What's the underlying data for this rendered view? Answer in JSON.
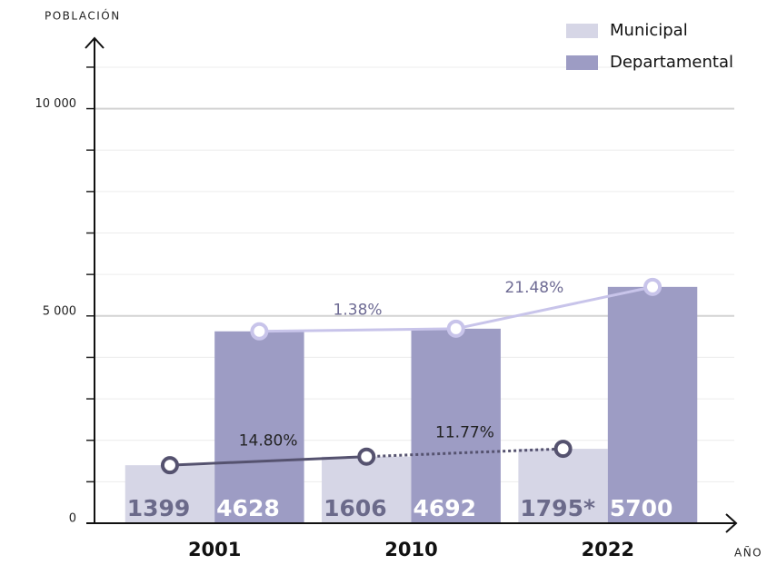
{
  "chart_data": {
    "type": "bar",
    "y_label": "POBLACIÓN",
    "x_label": "AÑO",
    "categories": [
      "2001",
      "2010",
      "2022"
    ],
    "series": [
      {
        "name": "Municipal",
        "color": "#d6d6e6",
        "label_color": "#6b6a8a",
        "values": [
          1399,
          1606,
          1795
        ],
        "value_labels": [
          "1399",
          "1606",
          "1795*"
        ],
        "line_color": "#55526f",
        "line_styles": [
          "solid",
          "dotted"
        ],
        "growth": {
          "values": [
            14.8,
            11.77
          ],
          "value_labels": [
            "14.80%",
            "11.77%"
          ]
        }
      },
      {
        "name": "Departamental",
        "color": "#9d9cc4",
        "label_color": "#ffffff",
        "values": [
          4628,
          4692,
          5700
        ],
        "line_color": "#c8c4ea",
        "line_styles": [
          "solid",
          "solid"
        ],
        "growth": {
          "values": [
            1.38,
            21.48
          ],
          "value_labels": [
            "1.38%",
            "21.48%"
          ]
        }
      }
    ],
    "ylim": [
      0,
      11700
    ],
    "yticks": [
      0,
      {
        "value": 5000,
        "label": "5 000"
      },
      {
        "value": 10000,
        "label": "10 000"
      }
    ],
    "minor_yticks": [
      1000,
      2000,
      3000,
      4000,
      6000,
      7000,
      8000,
      9000,
      11000
    ],
    "grid": true,
    "legend": "top-right"
  }
}
